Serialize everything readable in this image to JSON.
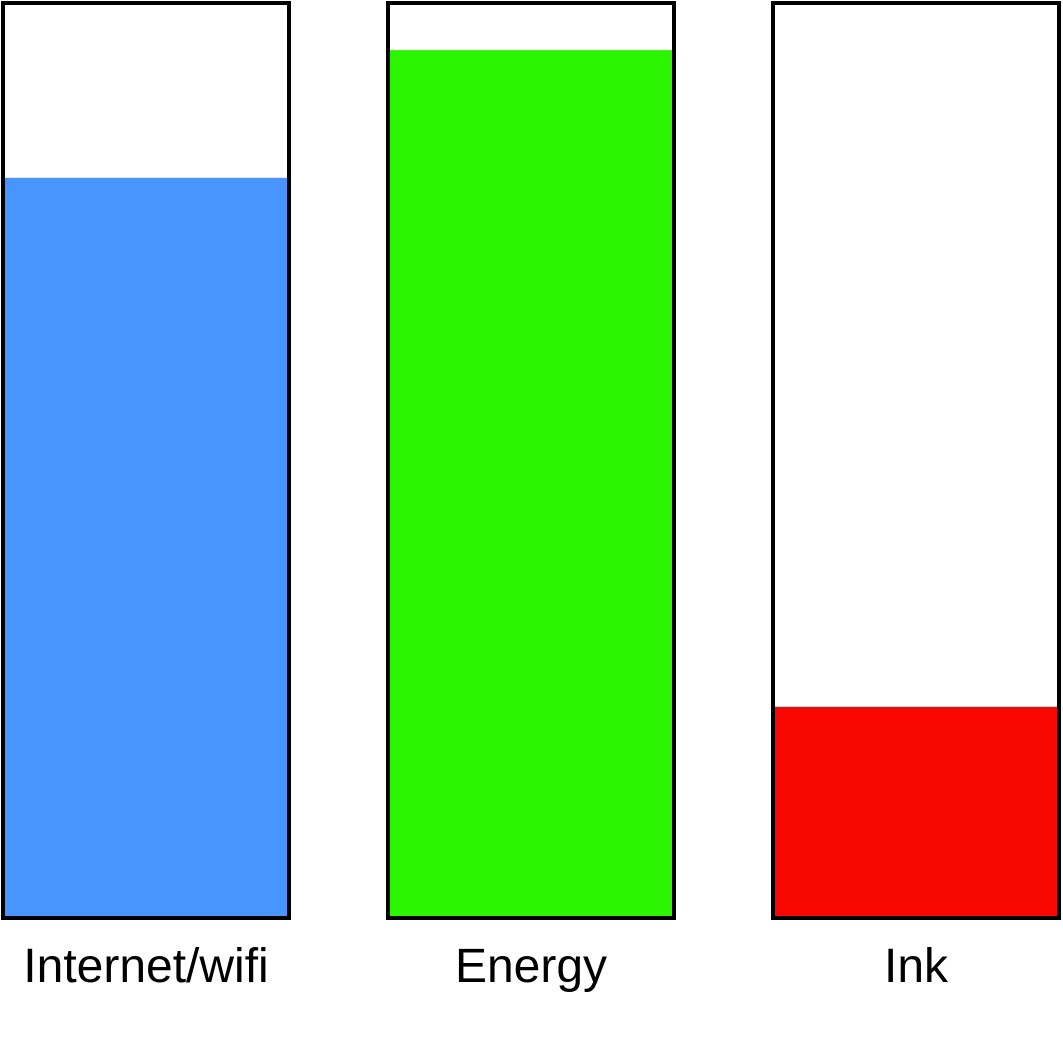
{
  "chart_data": {
    "type": "bar",
    "categories": [
      "Internet/wifi",
      "Energy",
      "Ink"
    ],
    "values": [
      81,
      95,
      23
    ],
    "ylim": [
      0,
      100
    ],
    "colors": [
      "#4895FF",
      "#2CF500",
      "#F70700"
    ],
    "title": "",
    "xlabel": "",
    "ylabel": "",
    "grid": false,
    "legend": false
  }
}
